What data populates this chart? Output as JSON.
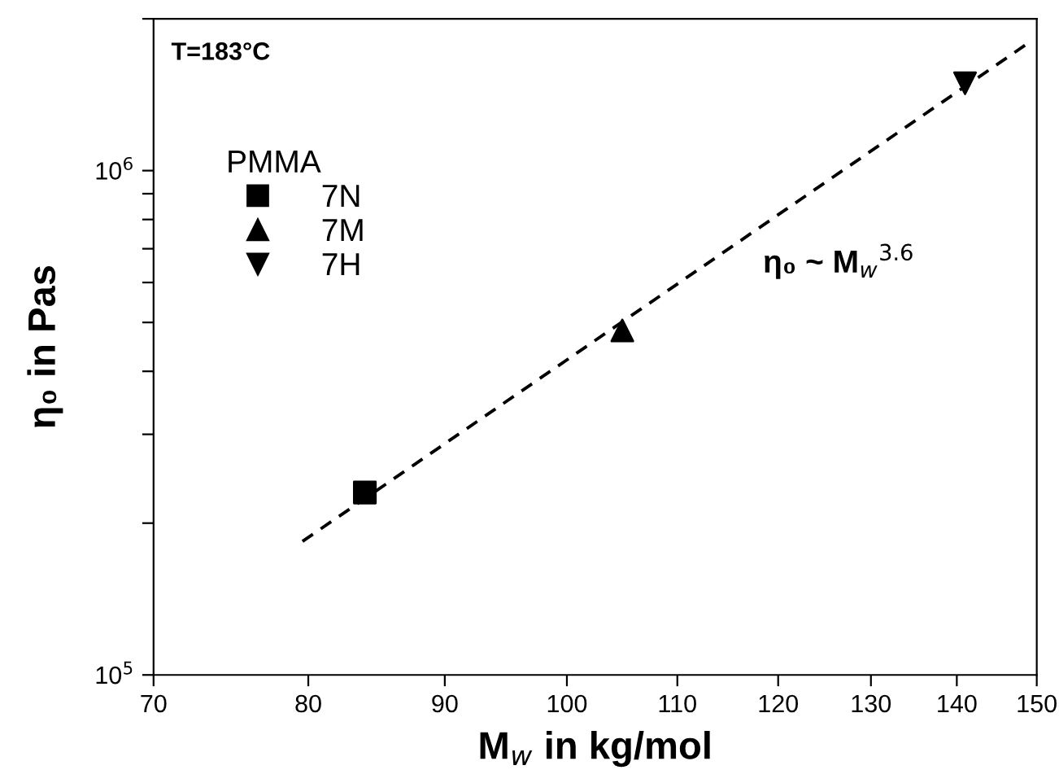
{
  "chart_data": {
    "type": "scatter",
    "xlabel": "M$_{w}$ in kg/mol",
    "ylabel": "η₀ in Pas",
    "legend_title": "PMMA",
    "annotations": [
      "T=183°C",
      "η₀ ~ M$_{w}$$^{3.6}$"
    ],
    "series": [
      {
        "name": "7N",
        "color": "#000000",
        "marker": "square",
        "x": [
          84.0
        ],
        "values": [
          230000
        ]
      },
      {
        "name": "7M",
        "color": "#000000",
        "marker": "triangle",
        "x": [
          104.9
        ],
        "values": [
          482000
        ]
      },
      {
        "name": "7H",
        "color": "#000000",
        "marker": "triangle_down",
        "x": [
          141
        ],
        "values": [
          1490000
        ]
      },
      {
        "type": "line",
        "color": "#000000",
        "marker": "none",
        "line_style": "dashed",
        "x": [
          79.6,
          148.9
        ],
        "values": [
          184000,
          1790000
        ]
      }
    ],
    "log": "xy",
    "xlim": [
      70,
      150
    ],
    "ylim": [
      100000,
      2000000
    ],
    "xticks": [
      70,
      80,
      90,
      100,
      110,
      120,
      130,
      140,
      150
    ],
    "yticks": [
      {
        "value": 100000,
        "label": "10$^{5}$"
      },
      {
        "value": 200000,
        "label": null
      },
      {
        "value": 300000,
        "label": null
      },
      {
        "value": 400000,
        "label": null
      },
      {
        "value": 500000,
        "label": null
      },
      {
        "value": 600000,
        "label": null
      },
      {
        "value": 700000,
        "label": null
      },
      {
        "value": 800000,
        "label": null
      },
      {
        "value": 900000,
        "label": null
      },
      {
        "value": 1000000,
        "label": "10$^{6}$"
      },
      {
        "value": 2000000,
        "label": null
      }
    ],
    "grid": false,
    "legend": "left"
  }
}
